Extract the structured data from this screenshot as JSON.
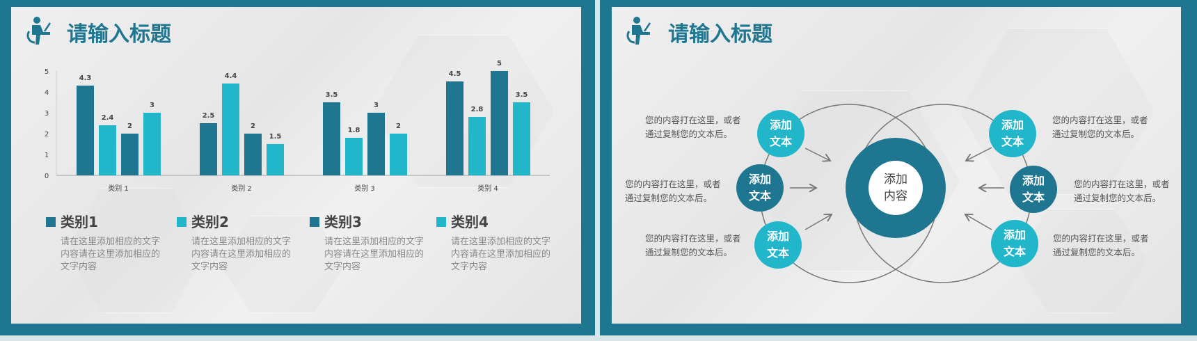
{
  "colors": {
    "dark": "#1f7690",
    "light": "#21b6ca",
    "frame": "#1f7690"
  },
  "left_slide": {
    "title": "请输入标题",
    "icon": "person-at-desk-icon",
    "legend": [
      {
        "label": "类别1",
        "desc": "请在这里添加相应的文字内容请在这里添加相应的文字内容"
      },
      {
        "label": "类别2",
        "desc": "请在这里添加相应的文字内容请在这里添加相应的文字内容"
      },
      {
        "label": "类别3",
        "desc": "请在这里添加相应的文字内容请在这里添加相应的文字内容"
      },
      {
        "label": "类别4",
        "desc": "请在这里添加相应的文字内容请在这里添加相应的文字内容"
      }
    ]
  },
  "chart_data": {
    "type": "bar",
    "categories": [
      "类别 1",
      "类别 2",
      "类别 3",
      "类别 4"
    ],
    "series": [
      {
        "values": [
          4.3,
          2.5,
          3.5,
          4.5
        ],
        "color": "#1f7690"
      },
      {
        "values": [
          2.4,
          4.4,
          1.8,
          2.8
        ],
        "color": "#21b6ca"
      },
      {
        "values": [
          2,
          2,
          3,
          5
        ],
        "color": "#1f7690"
      },
      {
        "values": [
          3,
          1.5,
          2,
          3.5
        ],
        "color": "#21b6ca"
      }
    ],
    "ylim": [
      0,
      5
    ],
    "yticks": [
      "0",
      "1",
      "2",
      "3",
      "4",
      "5"
    ],
    "data_labels": true,
    "grid": false
  },
  "right_slide": {
    "title": "请输入标题",
    "icon": "person-at-desk-icon",
    "center": "添加内容",
    "nodes": [
      {
        "label": "添加文本",
        "text": "您的内容打在这里，或者通过复制您的文本后。",
        "tone": "light"
      },
      {
        "label": "添加文本",
        "text": "您的内容打在这里，或者通过复制您的文本后。",
        "tone": "dark"
      },
      {
        "label": "添加文本",
        "text": "您的内容打在这里，或者通过复制您的文本后。",
        "tone": "light"
      },
      {
        "label": "添加文本",
        "text": "您的内容打在这里，或者通过复制您的文本后。",
        "tone": "light"
      },
      {
        "label": "添加文本",
        "text": "您的内容打在这里，或者通过复制您的文本后。",
        "tone": "dark"
      },
      {
        "label": "添加文本",
        "text": "您的内容打在这里，或者通过复制您的文本后。",
        "tone": "light"
      }
    ]
  }
}
